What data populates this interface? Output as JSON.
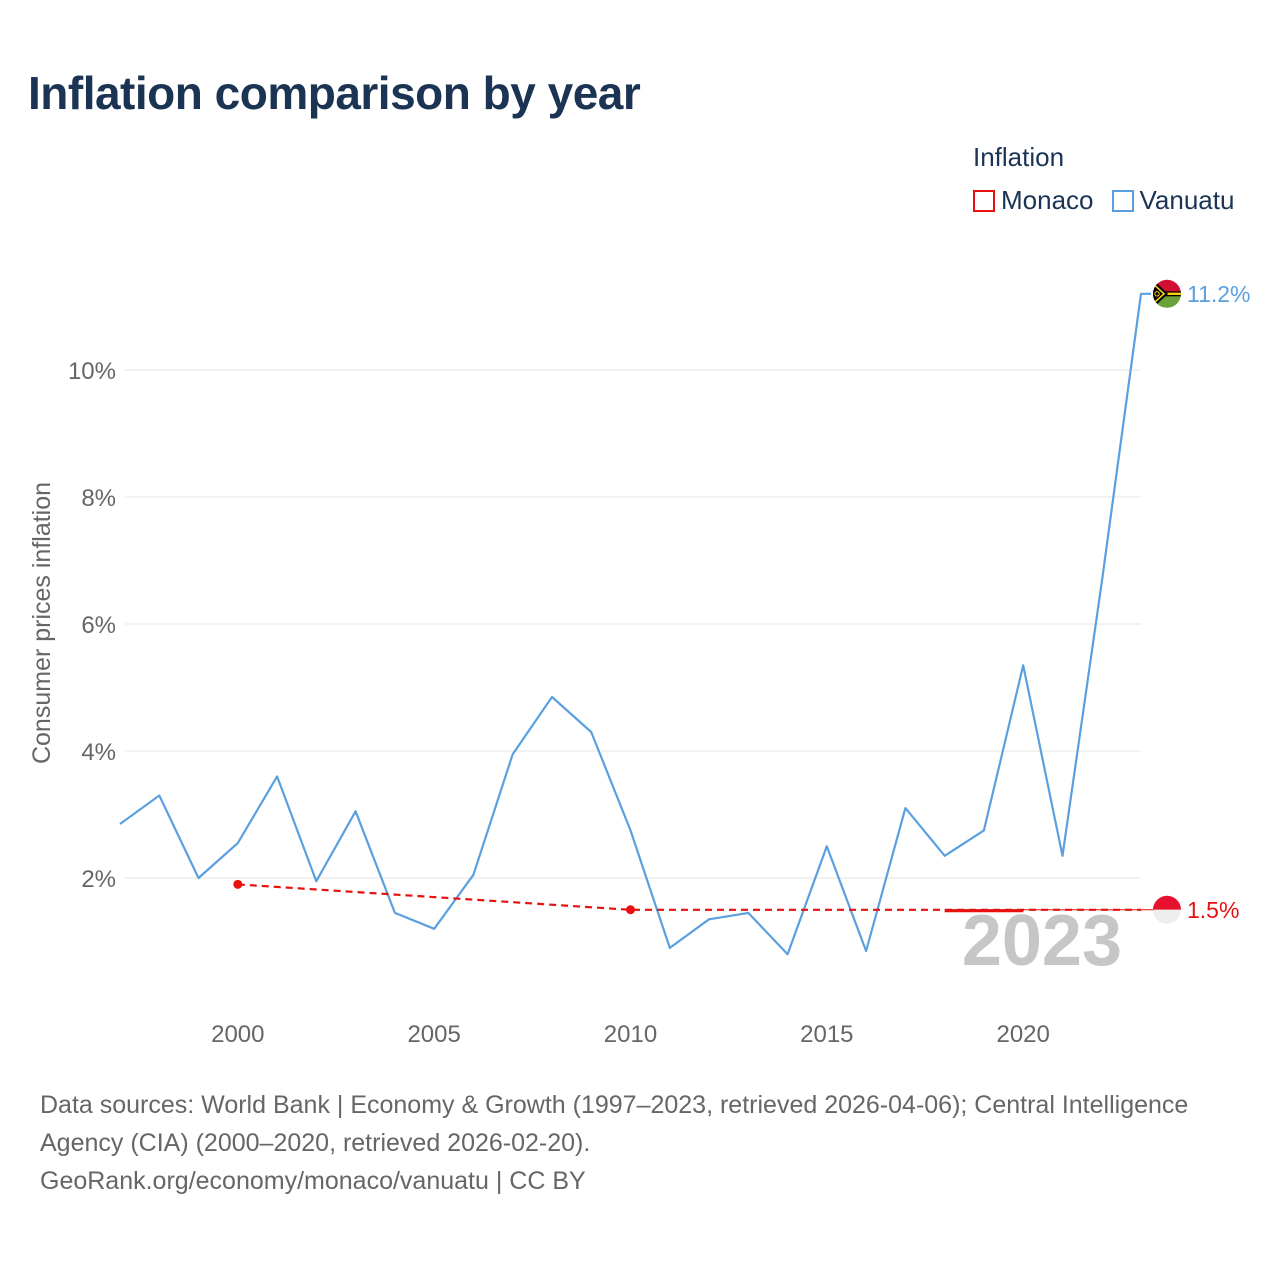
{
  "title": "Inflation comparison by year",
  "legend": {
    "title": "Inflation",
    "items": [
      {
        "label": "Monaco",
        "color": "#e8110f"
      },
      {
        "label": "Vanuatu",
        "color": "#5aa0e0"
      }
    ]
  },
  "chart_data": {
    "type": "line",
    "title": "Inflation comparison by year",
    "xlabel": "",
    "ylabel": "Consumer prices inflation",
    "xlim": [
      1997,
      2023
    ],
    "ylim": [
      0,
      11.5
    ],
    "xticks": [
      2000,
      2005,
      2010,
      2015,
      2020
    ],
    "yticks": [
      2,
      4,
      6,
      8,
      10
    ],
    "ytick_labels": [
      "2%",
      "4%",
      "6%",
      "8%",
      "10%"
    ],
    "grid": true,
    "year_watermark": "2023",
    "series": [
      {
        "name": "Vanuatu",
        "color": "#5aa0e0",
        "style": "solid",
        "end_label": "11.2%",
        "x": [
          1997,
          1998,
          1999,
          2000,
          2001,
          2002,
          2003,
          2004,
          2005,
          2006,
          2007,
          2008,
          2009,
          2010,
          2011,
          2012,
          2013,
          2014,
          2015,
          2016,
          2017,
          2018,
          2019,
          2020,
          2021,
          2022,
          2023
        ],
        "values": [
          2.85,
          3.3,
          2.0,
          2.55,
          3.6,
          1.95,
          3.05,
          1.45,
          1.2,
          2.05,
          3.95,
          4.85,
          4.3,
          2.75,
          0.9,
          1.35,
          1.45,
          0.8,
          2.5,
          0.85,
          3.1,
          2.35,
          2.75,
          5.35,
          2.35,
          6.65,
          11.2
        ]
      },
      {
        "name": "Monaco",
        "color": "#e8110f",
        "style": "dashed",
        "end_label": "1.5%",
        "x": [
          2000,
          2010,
          2023
        ],
        "values": [
          1.9,
          1.5,
          1.5
        ],
        "observed_x": [
          2000,
          2010
        ]
      }
    ]
  },
  "footer": {
    "sources": "Data sources: World Bank | Economy & Growth (1997–2023, retrieved 2026-04-06); Central Intelligence Agency (CIA) (2000–2020, retrieved 2026-02-20).",
    "credit": "GeoRank.org/economy/monaco/vanuatu | CC BY"
  }
}
